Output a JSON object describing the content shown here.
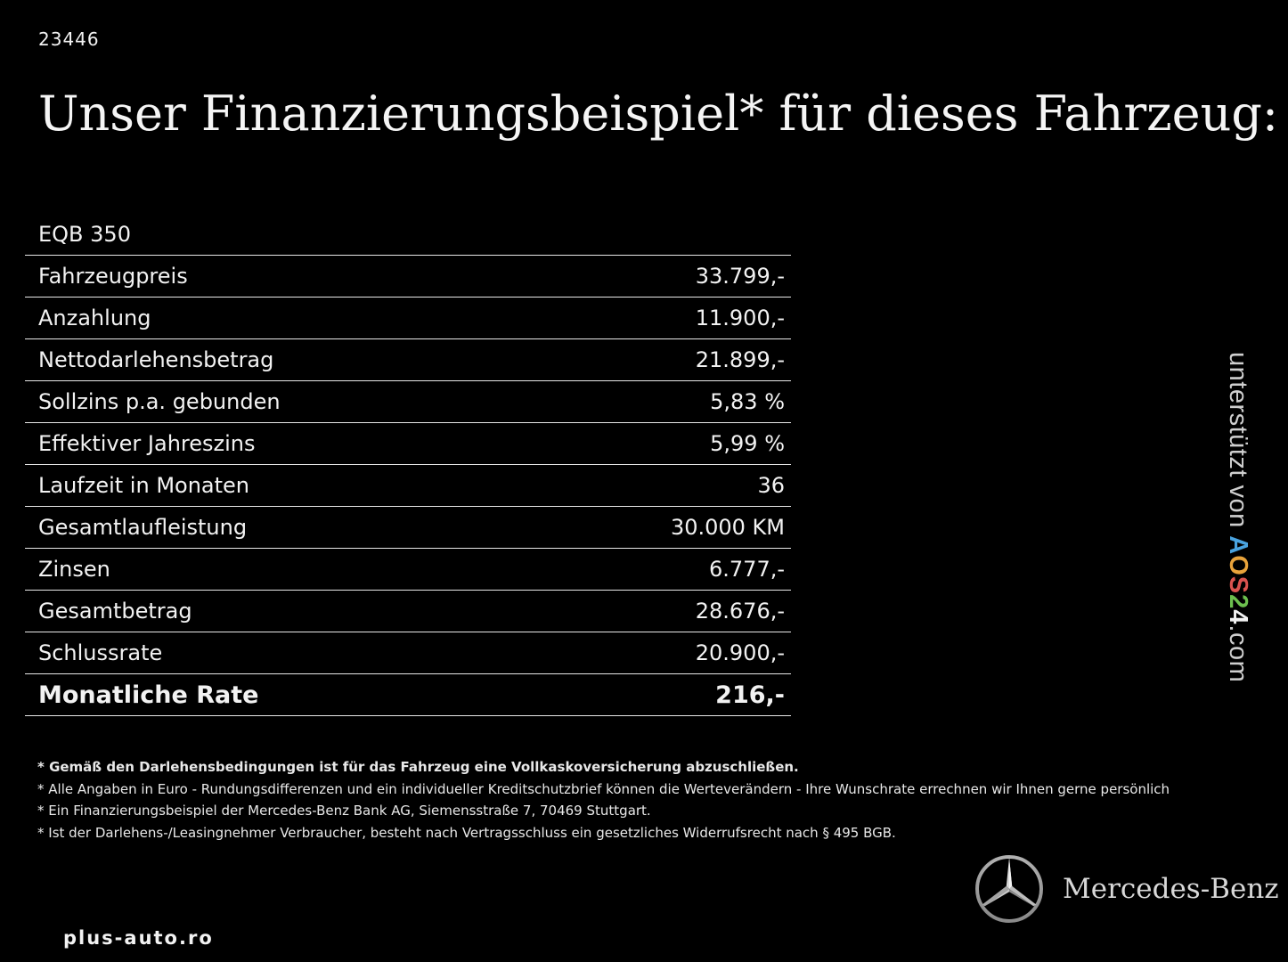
{
  "listing_id": "23446",
  "headline": "Unser Finanzierungsbeispiel* für dieses Fahrzeug:",
  "model": "EQB 350",
  "rows": [
    {
      "label": "Fahrzeugpreis",
      "value": "33.799,-"
    },
    {
      "label": "Anzahlung",
      "value": "11.900,-"
    },
    {
      "label": "Nettodarlehensbetrag",
      "value": "21.899,-"
    },
    {
      "label": "Sollzins p.a. gebunden",
      "value": "5,83 %"
    },
    {
      "label": "Effektiver Jahreszins",
      "value": "5,99 %"
    },
    {
      "label": "Laufzeit in Monaten",
      "value": "36"
    },
    {
      "label": "Gesamtlaufleistung",
      "value": "30.000 KM"
    },
    {
      "label": "Zinsen",
      "value": "6.777,-"
    },
    {
      "label": "Gesamtbetrag",
      "value": "28.676,-"
    },
    {
      "label": "Schlussrate",
      "value": "20.900,-"
    }
  ],
  "total": {
    "label": "Monatliche Rate",
    "value": "216,-"
  },
  "side_brand": {
    "prefix": "unterstützt von",
    "logo": {
      "a": "A",
      "o": "O",
      "s": "S",
      "two": "2",
      "four": "4"
    },
    "suffix": ".com"
  },
  "footnotes": [
    "* Gemäß den Darlehensbedingungen ist für das Fahrzeug eine Vollkaskoversicherung abzuschließen.",
    "* Alle Angaben in Euro - Rundungsdifferenzen und ein individueller Kreditschutzbrief können die Werteverändern - Ihre Wunschrate errechnen wir Ihnen gerne persönlich",
    "* Ein Finanzierungsbeispiel der Mercedes-Benz Bank AG, Siemensstraße 7, 70469 Stuttgart.",
    "* Ist der Darlehens-/Leasingnehmer Verbraucher, besteht nach Vertragsschluss ein gesetzliches Widerrufsrecht nach § 495 BGB."
  ],
  "brand_wordmark": "Mercedes-Benz",
  "brand_icon": "mercedes-star-icon",
  "site": "plus-auto.ro",
  "colors": {
    "background": "#000000",
    "text": "#f2f2f2",
    "rule": "#e8e8e8",
    "aos_a": "#4aa3df",
    "aos_o": "#e8a33b",
    "aos_s": "#d9534f",
    "aos_2": "#6cbf4e"
  }
}
